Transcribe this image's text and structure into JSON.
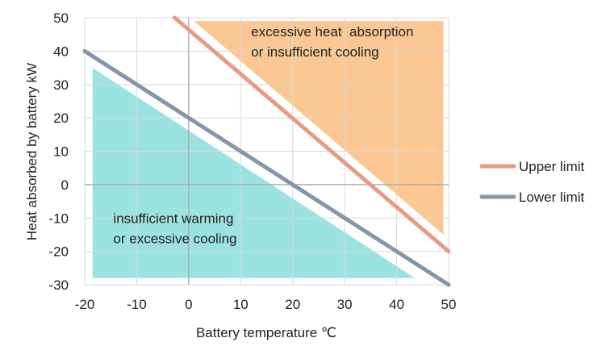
{
  "chart_data": {
    "type": "line",
    "title": "",
    "xlabel": "Battery temperature ℃",
    "ylabel": "Heat absorbed by battery kW",
    "xlim": [
      -20,
      50
    ],
    "ylim": [
      -30,
      50
    ],
    "xticks": [
      -20,
      -10,
      0,
      10,
      20,
      30,
      40,
      50
    ],
    "yticks": [
      -30,
      -20,
      -10,
      0,
      10,
      20,
      30,
      40,
      50
    ],
    "grid": true,
    "series": [
      {
        "name": "Upper limit",
        "color": "#e89a82",
        "x": [
          -2.7,
          50
        ],
        "y": [
          50,
          -20
        ]
      },
      {
        "name": "Lower limit",
        "color": "#8496a9",
        "x": [
          -20,
          50
        ],
        "y": [
          40,
          -30
        ]
      }
    ],
    "regions": [
      {
        "name": "excessive-heat-region",
        "label_lines": [
          "excessive heat  absorption",
          "or insufficient cooling"
        ],
        "color": "#fbc893",
        "polygon": [
          [
            1,
            49
          ],
          [
            49,
            49
          ],
          [
            49,
            -15
          ]
        ],
        "label_at": [
          12,
          44.5
        ]
      },
      {
        "name": "insufficient-warming-region",
        "label_lines": [
          "insufficient warming",
          "or excessive cooling"
        ],
        "color": "#9ae3e1",
        "polygon": [
          [
            -18.5,
            35
          ],
          [
            -18.5,
            -28
          ],
          [
            43.5,
            -28
          ]
        ],
        "label_at": [
          -14.5,
          -11.5
        ]
      }
    ],
    "legend": {
      "placement": "right",
      "items": [
        "Upper limit",
        "Lower limit"
      ]
    }
  }
}
